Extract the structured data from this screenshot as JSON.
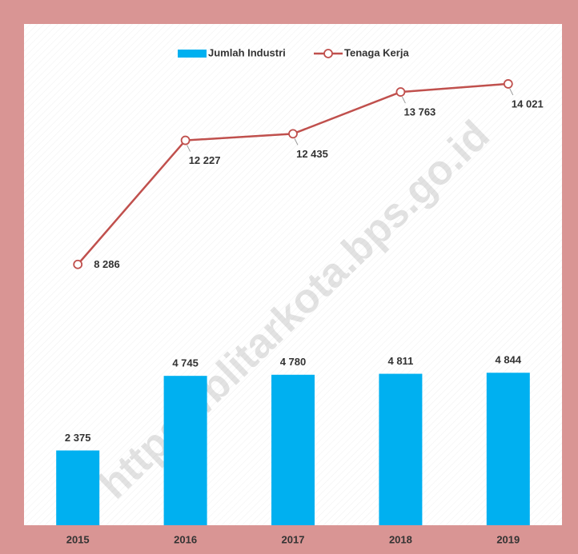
{
  "chart_data": {
    "type": "bar_line",
    "categories": [
      "2015",
      "2016",
      "2017",
      "2018",
      "2019"
    ],
    "series": [
      {
        "name": "Jumlah Industri",
        "type": "bar",
        "color": "#00b0f0",
        "values": [
          2375,
          4745,
          4780,
          4811,
          4844
        ],
        "value_labels": [
          "2 375",
          "4 745",
          "4 780",
          "4 811",
          "4 844"
        ]
      },
      {
        "name": "Tenaga Kerja",
        "type": "line",
        "color": "#c0504d",
        "values": [
          8286,
          12227,
          12435,
          13763,
          14021
        ],
        "value_labels": [
          "8 286",
          "12 227",
          "12 435",
          "13 763",
          "14 021"
        ]
      }
    ],
    "ylim": [
      0,
      16000
    ],
    "legend": "top",
    "watermark": "https://blitarkota.bps.go.id"
  }
}
